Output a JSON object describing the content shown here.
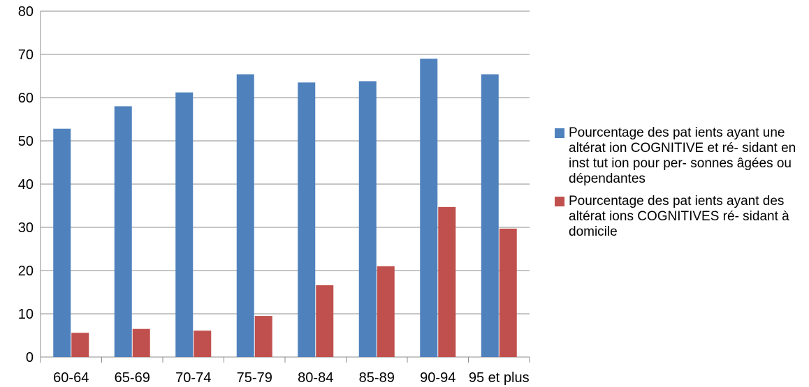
{
  "chart_data": {
    "type": "bar",
    "categories": [
      "60-64",
      "65-69",
      "70-74",
      "75-79",
      "80-84",
      "85-89",
      "90-94",
      "95 et plus"
    ],
    "series": [
      {
        "name": "Pourcentage des pat ients ayant une altérat ion COGNITIVE et ré- sidant en inst tut ion pour per- sonnes âgées ou dépendantes",
        "color": "#4F81BD",
        "values": [
          52.8,
          58.0,
          61.2,
          65.4,
          63.5,
          63.8,
          69.0,
          65.4
        ]
      },
      {
        "name": "Pourcentage des pat ients ayant des altérat ions COGNITIVES ré- sidant à domicile",
        "color": "#C0504D",
        "values": [
          5.6,
          6.5,
          6.1,
          9.5,
          16.6,
          21.0,
          34.7,
          29.7
        ]
      }
    ],
    "ylim": [
      0,
      80
    ],
    "yticks": [
      0,
      10,
      20,
      30,
      40,
      50,
      60,
      70,
      80
    ],
    "grid": true,
    "legend_position": "right"
  }
}
